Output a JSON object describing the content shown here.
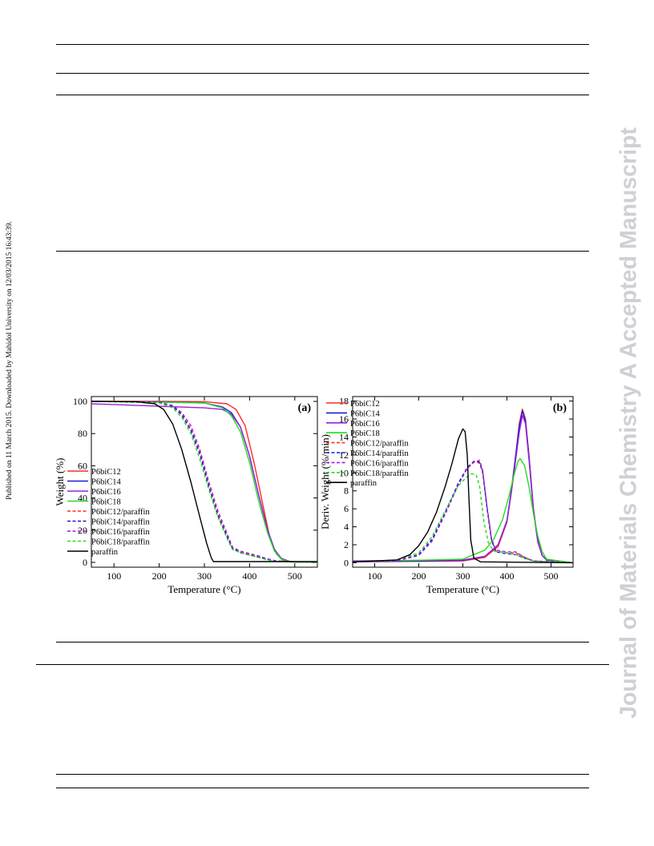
{
  "side_note": "Published on 11 March 2015. Downloaded by Mahidol University on 12/03/2015 16:43:39.",
  "watermark": "Journal of Materials Chemistry A Accepted Manuscript",
  "colors": {
    "P6biC12": "#ff2a2a",
    "P6biC14": "#1a1adb",
    "P6biC16": "#9a22d8",
    "P6biC18": "#22dd22",
    "paraffin": "#000000"
  },
  "chart_data": [
    {
      "type": "line",
      "panel_label": "(a)",
      "xlabel": "Temperature (°C)",
      "ylabel": "Weight (%)",
      "xlim": [
        50,
        550
      ],
      "ylim": [
        -3,
        103
      ],
      "xticks": [
        100,
        200,
        300,
        400,
        500
      ],
      "yticks": [
        0,
        20,
        40,
        60,
        80,
        100
      ],
      "grid": false,
      "legend": "middle-left",
      "series": [
        {
          "name": "P6biC12",
          "style": "solid",
          "color": "#ff2a2a",
          "x": [
            50,
            200,
            300,
            350,
            370,
            390,
            410,
            430,
            445,
            460,
            475,
            490,
            550
          ],
          "y": [
            100,
            100,
            99.8,
            98.5,
            95,
            85,
            62,
            35,
            15,
            5,
            1,
            0.3,
            0
          ]
        },
        {
          "name": "P6biC14",
          "style": "solid",
          "color": "#1a1adb",
          "x": [
            50,
            200,
            300,
            340,
            360,
            380,
            400,
            420,
            440,
            455,
            470,
            490,
            550
          ],
          "y": [
            100,
            99.7,
            99,
            96.5,
            93,
            84,
            66,
            42,
            20,
            8,
            2.5,
            0.4,
            0
          ]
        },
        {
          "name": "P6biC16",
          "style": "solid",
          "color": "#9a22d8",
          "x": [
            50,
            200,
            300,
            340,
            360,
            380,
            400,
            420,
            440,
            455,
            470,
            490,
            550
          ],
          "y": [
            98.5,
            97,
            96,
            95,
            92,
            84,
            66,
            42,
            20,
            8,
            2.5,
            0.4,
            0
          ]
        },
        {
          "name": "P6biC18",
          "style": "solid",
          "color": "#22dd22",
          "x": [
            50,
            200,
            300,
            340,
            360,
            380,
            400,
            420,
            440,
            455,
            470,
            490,
            550
          ],
          "y": [
            100,
            99.5,
            99,
            96,
            91,
            81,
            62,
            38,
            18,
            7,
            2,
            0.3,
            0
          ]
        },
        {
          "name": "P6biC12/paraffin",
          "style": "dashed",
          "color": "#ff2a2a",
          "x": [
            50,
            200,
            230,
            250,
            270,
            290,
            310,
            330,
            350,
            362,
            380,
            400,
            420,
            440,
            460,
            550
          ],
          "y": [
            100,
            99.5,
            97,
            92,
            83,
            68,
            48,
            30,
            17,
            9,
            6.5,
            5,
            3.5,
            2,
            0.8,
            0
          ]
        },
        {
          "name": "P6biC14/paraffin",
          "style": "dashed",
          "color": "#1a1adb",
          "x": [
            50,
            200,
            230,
            250,
            270,
            290,
            310,
            330,
            350,
            362,
            380,
            400,
            420,
            440,
            460,
            550
          ],
          "y": [
            100,
            99.5,
            97,
            91.5,
            82,
            67,
            47,
            29,
            16,
            8.5,
            6,
            4.5,
            3.2,
            1.8,
            0.7,
            0
          ]
        },
        {
          "name": "P6biC16/paraffin",
          "style": "dashed",
          "color": "#9a22d8",
          "x": [
            50,
            200,
            230,
            250,
            270,
            290,
            310,
            330,
            350,
            362,
            380,
            400,
            420,
            440,
            460,
            550
          ],
          "y": [
            100,
            99.5,
            97.5,
            93,
            85,
            70,
            50,
            32,
            18,
            9.5,
            7,
            5.5,
            4,
            2.2,
            0.9,
            0
          ]
        },
        {
          "name": "P6biC18/paraffin",
          "style": "dashed",
          "color": "#22dd22",
          "x": [
            50,
            200,
            230,
            250,
            270,
            290,
            310,
            330,
            350,
            362,
            380,
            400,
            420,
            440,
            460,
            550
          ],
          "y": [
            100,
            99,
            96,
            90,
            80,
            64,
            45,
            28,
            15,
            8,
            6,
            4.5,
            3,
            1.5,
            0.6,
            0
          ]
        },
        {
          "name": "paraffin",
          "style": "solid",
          "color": "#000000",
          "x": [
            50,
            150,
            190,
            210,
            230,
            250,
            270,
            290,
            305,
            315,
            320,
            550
          ],
          "y": [
            100,
            99.8,
            98.5,
            95,
            86,
            70,
            50,
            28,
            12,
            3,
            0.5,
            0.5
          ]
        }
      ]
    },
    {
      "type": "line",
      "panel_label": "(b)",
      "xlabel": "Temperature (°C)",
      "ylabel": "Deriv. Weight (%/min)",
      "xlim": [
        50,
        550
      ],
      "ylim": [
        -0.5,
        18.5
      ],
      "xticks": [
        100,
        200,
        300,
        400,
        500
      ],
      "yticks": [
        0,
        2,
        4,
        6,
        8,
        10,
        12,
        14,
        16,
        18
      ],
      "grid": false,
      "legend": "top-left",
      "series": [
        {
          "name": "P6biC12",
          "style": "solid",
          "color": "#ff2a2a",
          "x": [
            50,
            300,
            350,
            380,
            400,
            410,
            420,
            428,
            435,
            442,
            450,
            460,
            470,
            480,
            490,
            550
          ],
          "y": [
            0.1,
            0.2,
            0.6,
            1.8,
            4.5,
            8,
            12,
            15.5,
            17.1,
            16,
            12,
            6,
            2.5,
            0.8,
            0.3,
            0
          ]
        },
        {
          "name": "P6biC14",
          "style": "solid",
          "color": "#1a1adb",
          "x": [
            50,
            300,
            350,
            380,
            400,
            410,
            420,
            428,
            435,
            442,
            450,
            460,
            470,
            480,
            490,
            550
          ],
          "y": [
            0.1,
            0.25,
            0.7,
            2,
            4.7,
            8,
            12,
            15.2,
            16.9,
            15.8,
            11.8,
            6,
            2.4,
            0.8,
            0.3,
            0
          ]
        },
        {
          "name": "P6biC16",
          "style": "solid",
          "color": "#9a22d8",
          "x": [
            50,
            300,
            350,
            380,
            400,
            410,
            420,
            428,
            435,
            442,
            450,
            460,
            470,
            480,
            490,
            550
          ],
          "y": [
            0.2,
            0.3,
            0.7,
            2,
            4.6,
            7.8,
            11.5,
            14.5,
            16.4,
            15.5,
            11.5,
            5.8,
            2.3,
            0.8,
            0.3,
            0
          ]
        },
        {
          "name": "P6biC18",
          "style": "solid",
          "color": "#22dd22",
          "x": [
            50,
            300,
            350,
            370,
            390,
            405,
            415,
            425,
            430,
            440,
            450,
            460,
            470,
            480,
            490,
            550
          ],
          "y": [
            0.1,
            0.4,
            1.4,
            2.6,
            4.8,
            7.5,
            9.6,
            11.3,
            11.6,
            10.8,
            8.5,
            5.5,
            3,
            1.2,
            0.4,
            0
          ]
        },
        {
          "name": "P6biC12/paraffin",
          "style": "dashed",
          "color": "#ff2a2a",
          "x": [
            50,
            150,
            200,
            230,
            260,
            290,
            310,
            325,
            338,
            345,
            355,
            365,
            375,
            400,
            420,
            440,
            460,
            550
          ],
          "y": [
            0.1,
            0.2,
            0.9,
            2.5,
            5.5,
            8.8,
            10.5,
            11.2,
            11.1,
            10,
            6,
            2.5,
            1.3,
            1.1,
            1.1,
            0.6,
            0.2,
            0
          ]
        },
        {
          "name": "P6biC14/paraffin",
          "style": "dashed",
          "color": "#1a1adb",
          "x": [
            50,
            150,
            200,
            230,
            260,
            290,
            310,
            325,
            338,
            345,
            355,
            365,
            375,
            400,
            420,
            440,
            460,
            550
          ],
          "y": [
            0.1,
            0.2,
            0.9,
            2.6,
            5.6,
            8.9,
            10.6,
            11.3,
            11.2,
            10.1,
            6,
            2.5,
            1.2,
            1,
            0.9,
            0.5,
            0.2,
            0
          ]
        },
        {
          "name": "P6biC16/paraffin",
          "style": "dashed",
          "color": "#9a22d8",
          "x": [
            50,
            150,
            200,
            230,
            260,
            290,
            310,
            325,
            338,
            345,
            355,
            365,
            375,
            400,
            420,
            440,
            460,
            550
          ],
          "y": [
            0.1,
            0.2,
            0.8,
            2.4,
            5.4,
            8.7,
            10.5,
            11.2,
            11.4,
            10.3,
            6.2,
            2.7,
            1.4,
            1.2,
            1.2,
            0.6,
            0.2,
            0
          ]
        },
        {
          "name": "P6biC18/paraffin",
          "style": "dashed",
          "color": "#22dd22",
          "x": [
            50,
            150,
            200,
            230,
            260,
            290,
            310,
            320,
            330,
            338,
            348,
            358,
            370,
            400,
            420,
            440,
            460,
            550
          ],
          "y": [
            0.1,
            0.3,
            1.1,
            2.9,
            5.8,
            8.6,
            9.6,
            9.9,
            9.8,
            8.5,
            4.5,
            2.2,
            1.3,
            1.1,
            0.9,
            0.5,
            0.2,
            0
          ]
        },
        {
          "name": "paraffin",
          "style": "solid",
          "color": "#000000",
          "x": [
            50,
            150,
            180,
            200,
            220,
            240,
            260,
            275,
            290,
            300,
            305,
            310,
            313,
            318,
            325,
            340,
            550
          ],
          "y": [
            0.1,
            0.3,
            0.9,
            1.9,
            3.4,
            5.6,
            8.5,
            11,
            13.8,
            14.9,
            14.6,
            12,
            8,
            2.5,
            0.5,
            0.1,
            0
          ]
        }
      ]
    }
  ]
}
